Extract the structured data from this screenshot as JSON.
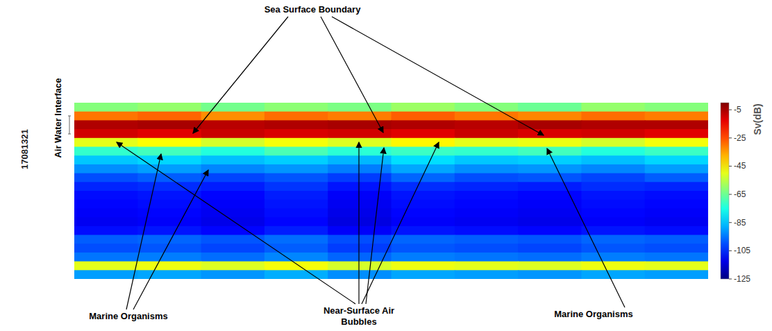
{
  "chart_data": {
    "type": "heatmap",
    "label": "17081321",
    "ylabel": "Air Water Interface",
    "tick_labels": false,
    "annotations": [
      "Sea Surface Boundary",
      "Marine Organisms",
      "Near-Surface Air Bubbles",
      "Marine Organisms"
    ],
    "colorbar": {
      "label": "Sv(dB)",
      "range": [
        -125,
        0
      ],
      "ticks": [
        -5,
        -25,
        -45,
        -65,
        -85,
        -105,
        -125
      ]
    },
    "cells": [
      [
        -62,
        -60,
        -64,
        -61,
        -63,
        -59,
        -62,
        -65,
        -60,
        -62
      ],
      [
        -30,
        -28,
        -33,
        -29,
        -31,
        -27,
        -30,
        -32,
        -29,
        -31
      ],
      [
        -6,
        -5,
        -7,
        -6,
        -5,
        -6,
        -7,
        -5,
        -6,
        -6
      ],
      [
        -10,
        -12,
        -9,
        -11,
        -10,
        -12,
        -9,
        -11,
        -10,
        -12
      ],
      [
        -50,
        -47,
        -52,
        -48,
        -51,
        -46,
        -50,
        -49,
        -52,
        -48
      ],
      [
        -72,
        -70,
        -74,
        -69,
        -73,
        -71,
        -72,
        -70,
        -74,
        -71
      ],
      [
        -85,
        -83,
        -86,
        -84,
        -87,
        -82,
        -85,
        -84,
        -86,
        -83
      ],
      [
        -92,
        -90,
        -93,
        -91,
        -94,
        -89,
        -92,
        -91,
        -93,
        -90
      ],
      [
        -100,
        -98,
        -101,
        -99,
        -102,
        -97,
        -100,
        -99,
        -101,
        -98
      ],
      [
        -105,
        -104,
        -106,
        -103,
        -107,
        -104,
        -105,
        -106,
        -104,
        -105
      ],
      [
        -108,
        -107,
        -109,
        -106,
        -110,
        -107,
        -108,
        -109,
        -107,
        -108
      ],
      [
        -109,
        -108,
        -110,
        -107,
        -111,
        -108,
        -109,
        -110,
        -108,
        -109
      ],
      [
        -110,
        -109,
        -111,
        -108,
        -112,
        -109,
        -110,
        -111,
        -109,
        -110
      ],
      [
        -111,
        -110,
        -112,
        -109,
        -113,
        -110,
        -111,
        -112,
        -110,
        -111
      ],
      [
        -108,
        -107,
        -109,
        -106,
        -110,
        -107,
        -108,
        -109,
        -107,
        -108
      ],
      [
        -98,
        -97,
        -99,
        -96,
        -100,
        -97,
        -98,
        -99,
        -97,
        -98
      ],
      [
        -100,
        -99,
        -101,
        -98,
        -102,
        -99,
        -100,
        -101,
        -99,
        -100
      ],
      [
        -95,
        -94,
        -96,
        -93,
        -97,
        -94,
        -95,
        -96,
        -94,
        -95
      ],
      [
        -50,
        -49,
        -51,
        -48,
        -52,
        -49,
        -50,
        -51,
        -49,
        -50
      ],
      [
        -90,
        -89,
        -91,
        -88,
        -92,
        -89,
        -90,
        -91,
        -89,
        -90
      ]
    ]
  }
}
